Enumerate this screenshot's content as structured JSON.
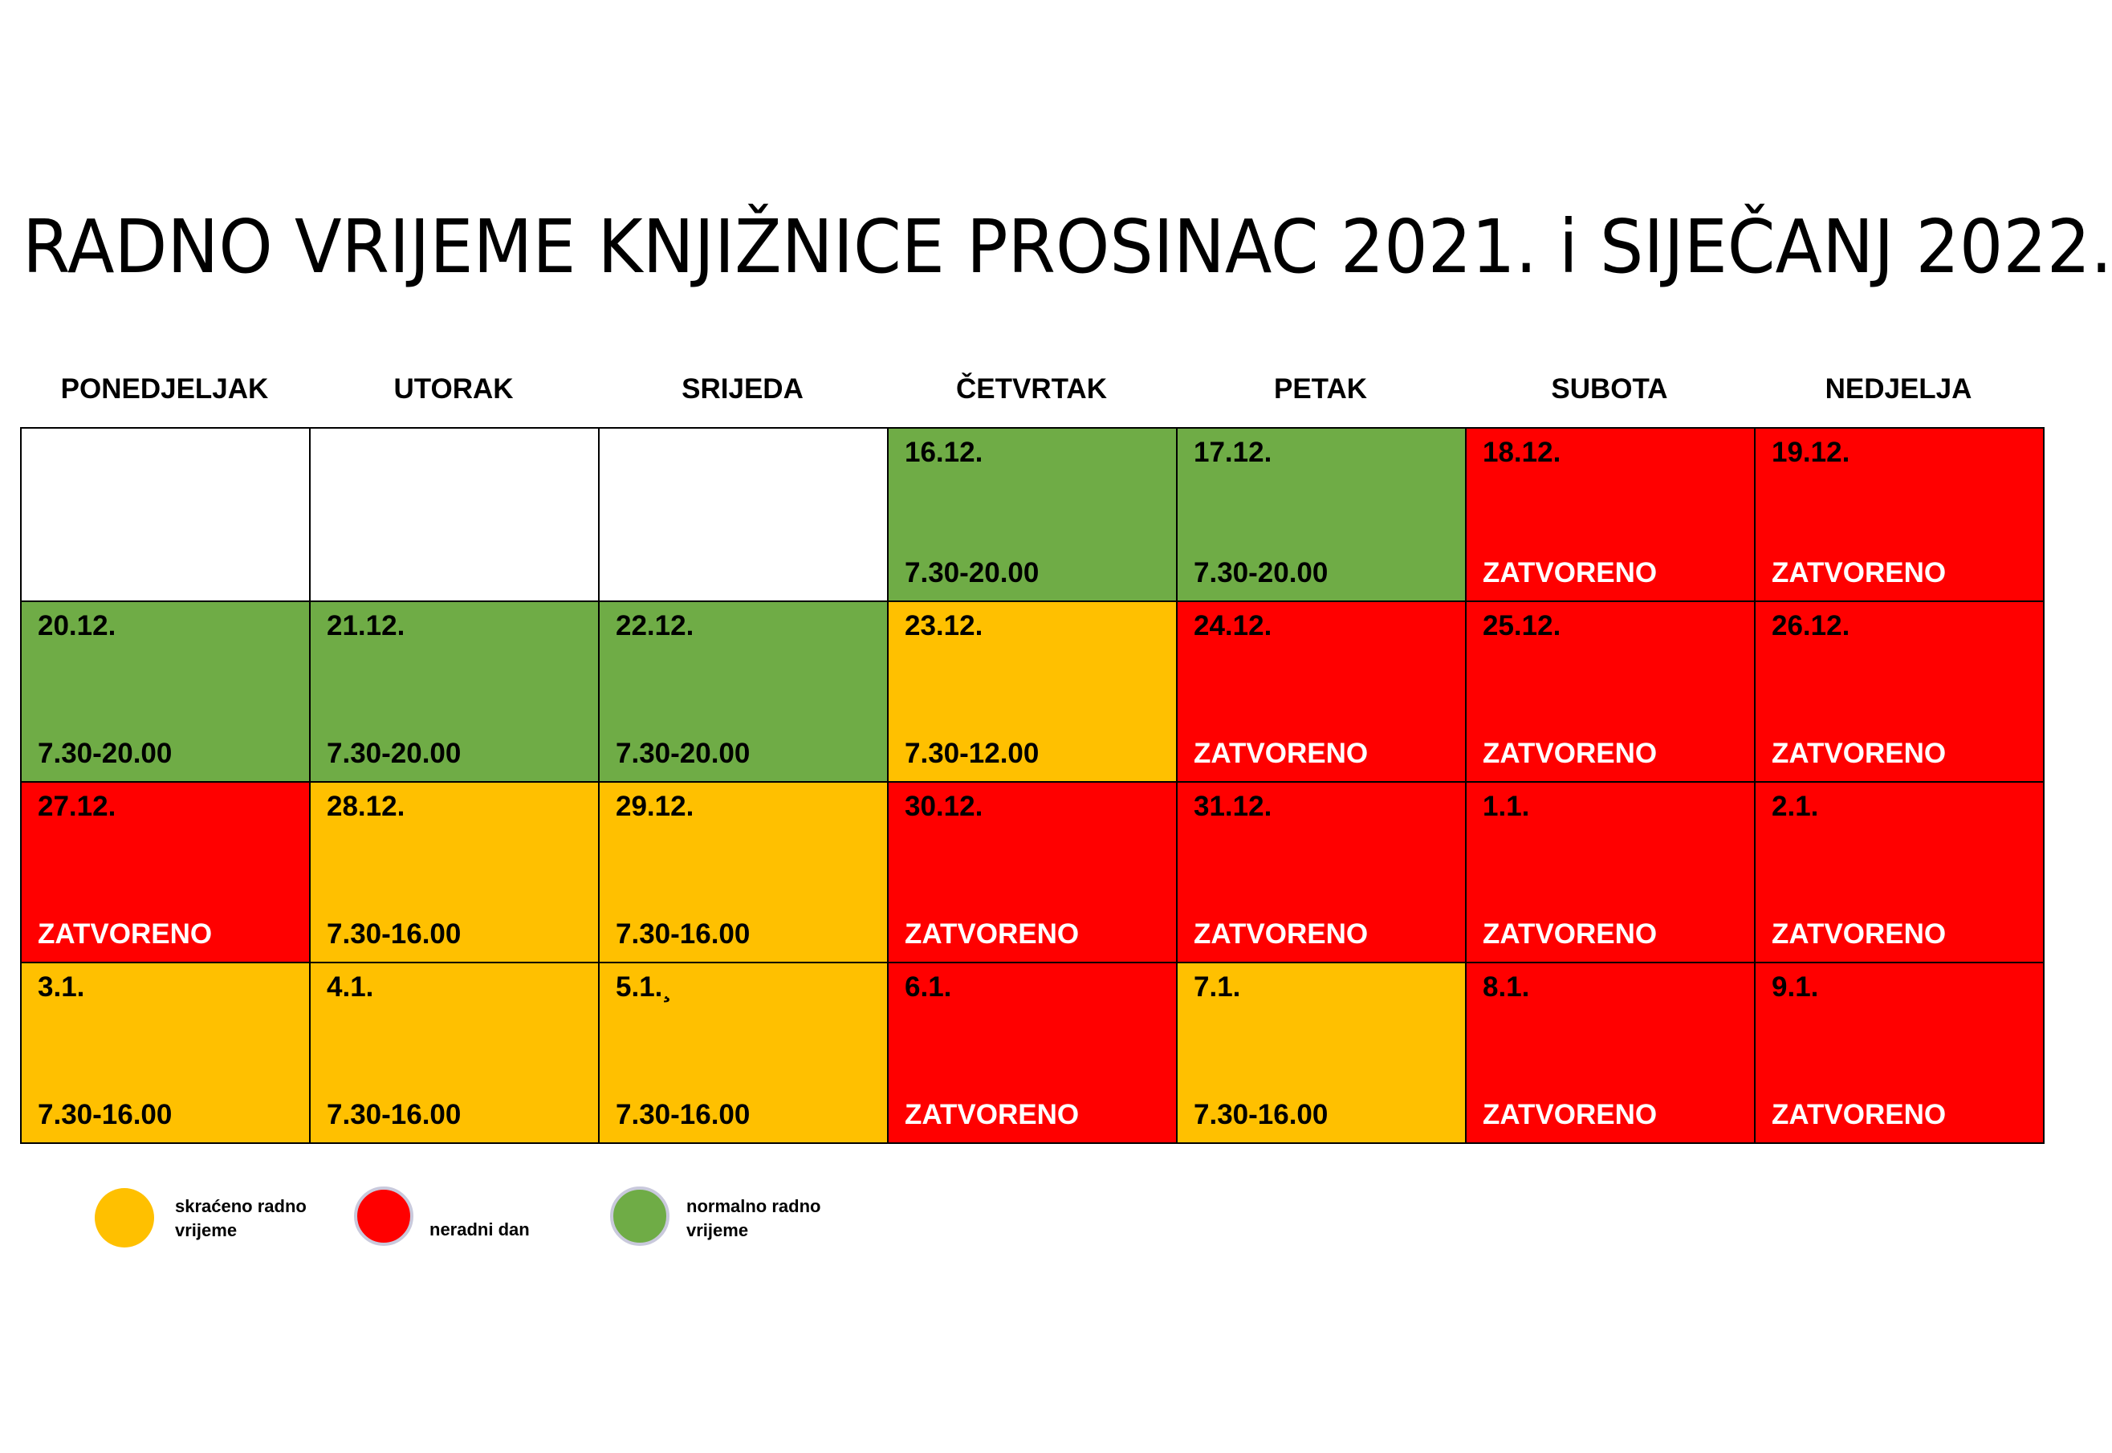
{
  "title": "RADNO VRIJEME KNJIŽNICE PROSINAC 2021. i SIJEČANJ 2022.",
  "days": [
    "PONEDJELJAK",
    "UTORAK",
    "SRIJEDA",
    "ČETVRTAK",
    "PETAK",
    "SUBOTA",
    "NEDJELJA"
  ],
  "colors": {
    "shortened": "#ffc000",
    "closed": "#ff0000",
    "normal": "#6fac46"
  },
  "weeks": [
    [
      {
        "date": "",
        "hours": "",
        "status": "empty"
      },
      {
        "date": "",
        "hours": "",
        "status": "empty"
      },
      {
        "date": "",
        "hours": "",
        "status": "empty"
      },
      {
        "date": "16.12.",
        "hours": "7.30-20.00",
        "status": "normal"
      },
      {
        "date": "17.12.",
        "hours": "7.30-20.00",
        "status": "normal"
      },
      {
        "date": "18.12.",
        "hours": "ZATVORENO",
        "status": "closed"
      },
      {
        "date": "19.12.",
        "hours": "ZATVORENO",
        "status": "closed"
      }
    ],
    [
      {
        "date": "20.12.",
        "hours": "7.30-20.00",
        "status": "normal"
      },
      {
        "date": "21.12.",
        "hours": "7.30-20.00",
        "status": "normal"
      },
      {
        "date": "22.12.",
        "hours": "7.30-20.00",
        "status": "normal"
      },
      {
        "date": "23.12.",
        "hours": "7.30-12.00",
        "status": "shortened"
      },
      {
        "date": "24.12.",
        "hours": "ZATVORENO",
        "status": "closed"
      },
      {
        "date": "25.12.",
        "hours": "ZATVORENO",
        "status": "closed"
      },
      {
        "date": "26.12.",
        "hours": "ZATVORENO",
        "status": "closed"
      }
    ],
    [
      {
        "date": "27.12.",
        "hours": "ZATVORENO",
        "status": "closed"
      },
      {
        "date": "28.12.",
        "hours": "7.30-16.00",
        "status": "shortened"
      },
      {
        "date": "29.12.",
        "hours": "7.30-16.00",
        "status": "shortened"
      },
      {
        "date": "30.12.",
        "hours": "ZATVORENO",
        "status": "closed"
      },
      {
        "date": "31.12.",
        "hours": "ZATVORENO",
        "status": "closed"
      },
      {
        "date": "1.1.",
        "hours": "ZATVORENO",
        "status": "closed"
      },
      {
        "date": "2.1.",
        "hours": "ZATVORENO",
        "status": "closed"
      }
    ],
    [
      {
        "date": "3.1.",
        "hours": "7.30-16.00",
        "status": "shortened"
      },
      {
        "date": "4.1.",
        "hours": "7.30-16.00",
        "status": "shortened"
      },
      {
        "date": "5.1.¸",
        "hours": "7.30-16.00",
        "status": "shortened"
      },
      {
        "date": "6.1.",
        "hours": "ZATVORENO",
        "status": "closed"
      },
      {
        "date": "7.1.",
        "hours": "7.30-16.00",
        "status": "shortened"
      },
      {
        "date": "8.1.",
        "hours": "ZATVORENO",
        "status": "closed"
      },
      {
        "date": "9.1.",
        "hours": "ZATVORENO",
        "status": "closed"
      }
    ]
  ],
  "legend": {
    "shortened": "skraćeno radno vrijeme",
    "closed": "neradni dan",
    "normal": "normalno radno vrijeme"
  }
}
